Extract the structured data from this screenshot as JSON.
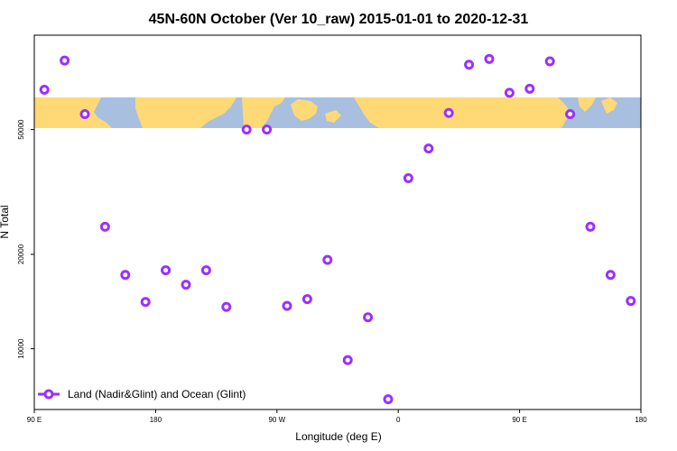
{
  "chart_data": {
    "type": "scatter",
    "title": "45N-60N October (Ver 10_raw)   2015-01-01 to 2020-12-31",
    "xlabel": "Longitude (deg E)",
    "ylabel": "N Total",
    "x_ticks": [
      {
        "value": 90,
        "label": "90 E"
      },
      {
        "value": 180,
        "label": "180"
      },
      {
        "value": 270,
        "label": "90 W"
      },
      {
        "value": 360,
        "label": "0"
      },
      {
        "value": 450,
        "label": "90 E"
      },
      {
        "value": 540,
        "label": "180"
      }
    ],
    "y_ticks": [
      10000,
      20000,
      50000
    ],
    "xlim": [
      90,
      540
    ],
    "y_scale": "log",
    "ylim": [
      6400,
      100000
    ],
    "legend": {
      "position": "bottom-left",
      "label": "Land (Nadir&Glint) and Ocean (Glint)"
    },
    "background_band": {
      "description": "world map strip",
      "y_range": [
        46000,
        61000
      ]
    },
    "colors": {
      "series": "#9b30ff",
      "map_land": "#ffd976",
      "map_ocean": "#a8bfdf"
    },
    "series": [
      {
        "name": "Land (Nadir&Glint) and Ocean (Glint)",
        "x": [
          97.5,
          112.5,
          127.5,
          142.5,
          157.5,
          172.5,
          187.5,
          202.5,
          217.5,
          232.5,
          247.5,
          262.5,
          277.5,
          292.5,
          307.5,
          322.5,
          337.5,
          352.5,
          367.5,
          382.5,
          397.5,
          412.5,
          427.5,
          442.5,
          457.5,
          472.5,
          487.5,
          502.5,
          517.5,
          532.5
        ],
        "y": [
          67000,
          83000,
          56000,
          24500,
          17200,
          14100,
          17800,
          16000,
          17800,
          13600,
          50000,
          50000,
          13700,
          14400,
          19200,
          9200,
          12600,
          6900,
          35000,
          43500,
          56500,
          80500,
          84000,
          65500,
          67500,
          82500,
          56000,
          24500,
          17200,
          14200
        ]
      }
    ]
  }
}
